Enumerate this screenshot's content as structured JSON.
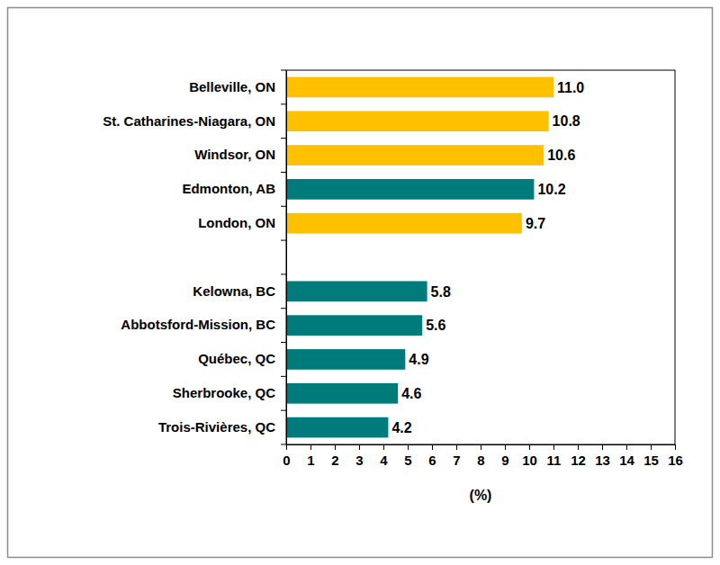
{
  "chart_data": {
    "type": "bar",
    "orientation": "horizontal",
    "categories": [
      "Belleville, ON",
      "St. Catharines-Niagara, ON",
      "Windsor, ON",
      "Edmonton, AB",
      "London, ON",
      null,
      "Kelowna, BC",
      "Abbotsford-Mission, BC",
      "Québec, QC",
      "Sherbrooke, QC",
      "Trois-Rivières, QC"
    ],
    "values": [
      11.0,
      10.8,
      10.6,
      10.2,
      9.7,
      null,
      5.8,
      5.6,
      4.9,
      4.6,
      4.2
    ],
    "value_labels": [
      "11.0",
      "10.8",
      "10.6",
      "10.2",
      "9.7",
      null,
      "5.8",
      "5.6",
      "4.9",
      "4.6",
      "4.2"
    ],
    "colors": [
      "#ffc000",
      "#ffc000",
      "#ffc000",
      "#007b7b",
      "#ffc000",
      null,
      "#007b7b",
      "#007b7b",
      "#007b7b",
      "#007b7b",
      "#007b7b"
    ],
    "x_label": "(%)",
    "xlim": [
      0,
      16
    ],
    "xticks": [
      0,
      1,
      2,
      3,
      4,
      5,
      6,
      7,
      8,
      9,
      10,
      11,
      12,
      13,
      14,
      15,
      16
    ],
    "grid": false,
    "data_labels": true
  }
}
